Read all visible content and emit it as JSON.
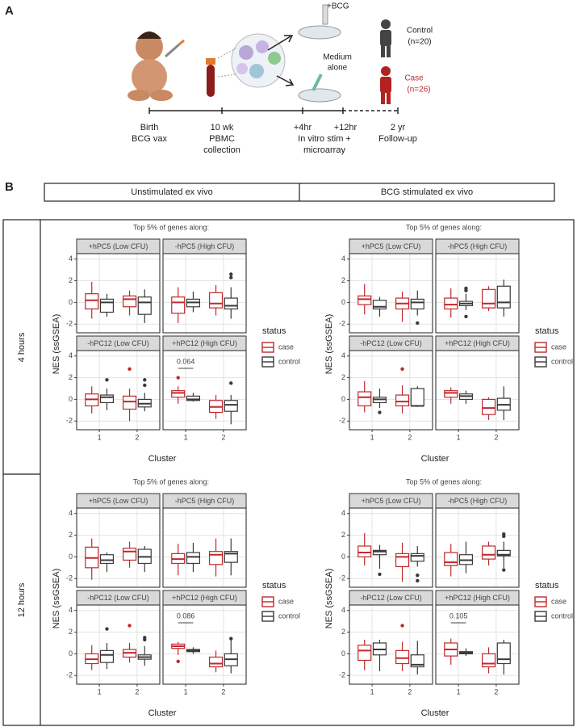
{
  "panel_a": {
    "letter": "A",
    "bcg": "+BCG",
    "medium": [
      "Medium",
      "alone"
    ],
    "control": [
      "Control",
      "(n=20)"
    ],
    "case": [
      "Case",
      "(n=26)"
    ],
    "timeline": [
      {
        "lines": [
          "Birth",
          "BCG vax"
        ]
      },
      {
        "lines": [
          "10 wk",
          "PBMC",
          "collection"
        ]
      },
      {
        "lines": [
          "+4hr"
        ]
      },
      {
        "lines": [
          "+12hr"
        ]
      },
      {
        "lines": [
          "In vitro stim +",
          "microarray"
        ]
      },
      {
        "lines": [
          "2 yr",
          "Follow-up"
        ]
      }
    ]
  },
  "panel_b": {
    "letter": "B",
    "columns": [
      "Unstimulated ex vivo",
      "BCG stimulated ex vivo"
    ],
    "rows": [
      "4 hours",
      "12 hours"
    ]
  },
  "chart_data": [
    {
      "type": "box",
      "title": "Top 5% of genes along:",
      "x_label": "Cluster",
      "y_label": "NES (ssGSEA)",
      "categories": [
        "1",
        "2"
      ],
      "ylim": [
        -2.8,
        4.5
      ],
      "yticks": [
        -2,
        0,
        2,
        4
      ],
      "grid": true,
      "legend_title": "status",
      "series": [
        {
          "name": "case",
          "color": "#c0282d"
        },
        {
          "name": "control",
          "color": "#3a3a3a"
        }
      ],
      "facets": [
        {
          "label": "+hPC5 (Low CFU)",
          "data": [
            [
              [
                -1.5,
                -0.6,
                0.2,
                0.8,
                1.9
              ],
              [
                -1.2,
                -0.4,
                0.3,
                0.6,
                1.1
              ]
            ],
            [
              [
                -1.3,
                -0.9,
                0,
                0.3,
                0.8
              ],
              [
                -1.9,
                -1.1,
                0,
                0.5,
                1.2
              ]
            ]
          ],
          "outliers": [
            [
              [],
              []
            ],
            [
              [],
              []
            ]
          ]
        },
        {
          "label": "-hPC5 (High CFU)",
          "data": [
            [
              [
                -1.9,
                -1,
                0,
                0.5,
                1.4
              ],
              [
                -1.2,
                -0.5,
                -0.1,
                0.9,
                1.6
              ]
            ],
            [
              [
                -0.9,
                -0.4,
                0,
                0.3,
                1.0
              ],
              [
                -1.5,
                -0.6,
                -0.3,
                0.4,
                1.4
              ]
            ]
          ],
          "outliers": [
            [
              [],
              []
            ],
            [
              [],
              [
                2.3,
                2.6
              ]
            ]
          ]
        },
        {
          "label": "-hPC12 (Low CFU)",
          "data": [
            [
              [
                -1.3,
                -0.6,
                0,
                0.5,
                1.2
              ],
              [
                -2,
                -0.9,
                -0.2,
                0.3,
                1
              ]
            ],
            [
              [
                -1.0,
                -0.3,
                0.2,
                0.4,
                1.0
              ],
              [
                -1.1,
                -0.7,
                -0.4,
                0,
                0.6
              ]
            ]
          ],
          "outliers": [
            [
              [],
              [
                2.8
              ]
            ],
            [
              [
                1.8
              ],
              [
                1.3,
                1.8
              ]
            ]
          ]
        },
        {
          "label": "+hPC12 (High CFU)",
          "annotation": 0.064,
          "data": [
            [
              [
                -0.4,
                0.2,
                0.6,
                0.8,
                1.2
              ],
              [
                -1.8,
                -1.2,
                -0.7,
                -0.1,
                0.4
              ]
            ],
            [
              [
                -0.2,
                -0.1,
                0,
                0.3,
                0.6
              ],
              [
                -2.3,
                -1.1,
                -0.5,
                -0.1,
                0.4
              ]
            ]
          ],
          "outliers": [
            [
              [
                2.0
              ],
              []
            ],
            [
              [],
              [
                1.5
              ]
            ]
          ]
        }
      ]
    },
    {
      "type": "box",
      "title": "Top 5% of genes along:",
      "x_label": "Cluster",
      "y_label": "NES (ssGSEA)",
      "categories": [
        "1",
        "2"
      ],
      "ylim": [
        -2.8,
        4.5
      ],
      "yticks": [
        -2,
        0,
        2,
        4
      ],
      "grid": true,
      "legend_title": "status",
      "series": [
        {
          "name": "case",
          "color": "#c0282d"
        },
        {
          "name": "control",
          "color": "#3a3a3a"
        }
      ],
      "facets": [
        {
          "label": "+hPC5 (Low CFU)",
          "data": [
            [
              [
                -1.1,
                -0.2,
                0.3,
                0.6,
                1.7
              ],
              [
                -1.8,
                -0.6,
                -0.1,
                0.4,
                1.0
              ]
            ],
            [
              [
                -1.3,
                -0.6,
                -0.4,
                0.2,
                0.5
              ],
              [
                -1.2,
                -0.6,
                0,
                0.3,
                1.1
              ]
            ]
          ],
          "outliers": [
            [
              [],
              []
            ],
            [
              [],
              [
                -1.9
              ]
            ]
          ]
        },
        {
          "label": "-hPC5 (High CFU)",
          "data": [
            [
              [
                -1.4,
                -0.6,
                -0.2,
                0.4,
                1.3
              ],
              [
                -0.8,
                -0.5,
                -0.1,
                1.2,
                1.5
              ]
            ],
            [
              [
                -0.7,
                -0.3,
                -0.1,
                0.1,
                0.8
              ],
              [
                -1.3,
                -0.5,
                0,
                1.5,
                2.1
              ]
            ]
          ],
          "outliers": [
            [
              [],
              []
            ],
            [
              [
                -1.3,
                1.1,
                1.3
              ],
              []
            ]
          ]
        },
        {
          "label": "-hPC12 (Low CFU)",
          "data": [
            [
              [
                -1.2,
                -0.6,
                0.2,
                0.7,
                1.7
              ],
              [
                -1.3,
                -0.6,
                -0.2,
                0.4,
                1.3
              ]
            ],
            [
              [
                -0.8,
                -0.3,
                0,
                0.2,
                1.0
              ],
              [
                -0.7,
                -0.6,
                -0.6,
                1.0,
                1.2
              ]
            ]
          ],
          "outliers": [
            [
              [],
              [
                2.8
              ]
            ],
            [
              [
                -1.2
              ],
              []
            ]
          ]
        },
        {
          "label": "+hPC12 (High CFU)",
          "data": [
            [
              [
                -0.4,
                0.2,
                0.6,
                0.8,
                1.1
              ],
              [
                -1.9,
                -1.4,
                -0.8,
                0,
                0.2
              ]
            ],
            [
              [
                -0.4,
                0,
                0.3,
                0.5,
                0.8
              ],
              [
                -1.9,
                -1.0,
                -0.5,
                0.1,
                1.2
              ]
            ]
          ],
          "outliers": [
            [
              [],
              []
            ],
            [
              [],
              []
            ]
          ]
        }
      ]
    },
    {
      "type": "box",
      "title": "Top 5% of genes along:",
      "x_label": "Cluster",
      "y_label": "NES (ssGSEA)",
      "categories": [
        "1",
        "2"
      ],
      "ylim": [
        -2.8,
        4.5
      ],
      "yticks": [
        -2,
        0,
        2,
        4
      ],
      "grid": true,
      "legend_title": "status",
      "series": [
        {
          "name": "case",
          "color": "#c0282d"
        },
        {
          "name": "control",
          "color": "#3a3a3a"
        }
      ],
      "facets": [
        {
          "label": "+hPC5 (Low CFU)",
          "data": [
            [
              [
                -2.1,
                -1,
                -0.1,
                0.9,
                1.7
              ],
              [
                -1,
                -0.3,
                0.5,
                0.8,
                1.4
              ]
            ],
            [
              [
                -1.4,
                -0.6,
                -0.3,
                0.2,
                0.4
              ],
              [
                -1.4,
                -0.6,
                0,
                0.7,
                1.0
              ]
            ]
          ],
          "outliers": [
            [
              [],
              []
            ],
            [
              [],
              []
            ]
          ]
        },
        {
          "label": "-hPC5 (High CFU)",
          "data": [
            [
              [
                -1.7,
                -0.6,
                -0.2,
                0.3,
                1.2
              ],
              [
                -1.8,
                -0.7,
                0.2,
                0.5,
                1.7
              ]
            ],
            [
              [
                -1.4,
                -0.6,
                0,
                0.4,
                1.3
              ],
              [
                -1.7,
                -0.5,
                0.3,
                0.5,
                1.7
              ]
            ]
          ],
          "outliers": [
            [
              [],
              []
            ],
            [
              [],
              []
            ]
          ]
        },
        {
          "label": "-hPC12 (Low CFU)",
          "data": [
            [
              [
                -1.5,
                -0.9,
                -0.5,
                0,
                0.8
              ],
              [
                -0.8,
                -0.3,
                0.1,
                0.4,
                1.0
              ]
            ],
            [
              [
                -1.4,
                -0.8,
                -0.1,
                0.3,
                1.0
              ],
              [
                -1.1,
                -0.5,
                -0.3,
                -0.1,
                0.7
              ]
            ]
          ],
          "outliers": [
            [
              [],
              [
                2.6
              ]
            ],
            [
              [
                2.3
              ],
              [
                1.3,
                1.5
              ]
            ]
          ]
        },
        {
          "label": "+hPC12 (High CFU)",
          "annotation": 0.086,
          "data": [
            [
              [
                -0.1,
                0.5,
                0.7,
                0.9,
                1.1
              ],
              [
                -1.7,
                -1.2,
                -0.9,
                -0.3,
                0.3
              ]
            ],
            [
              [
                0,
                0.2,
                0.3,
                0.4,
                0.6
              ],
              [
                -1.8,
                -1.1,
                -0.5,
                0,
                1.3
              ]
            ]
          ],
          "outliers": [
            [
              [
                -0.7
              ],
              []
            ],
            [
              [],
              [
                1.4
              ]
            ]
          ]
        }
      ]
    },
    {
      "type": "box",
      "title": "Top 5% of genes along:",
      "x_label": "Cluster",
      "y_label": "NES (ssGSEA)",
      "categories": [
        "1",
        "2"
      ],
      "ylim": [
        -2.8,
        4.5
      ],
      "yticks": [
        -2,
        0,
        2,
        4
      ],
      "grid": true,
      "legend_title": "status",
      "series": [
        {
          "name": "case",
          "color": "#c0282d"
        },
        {
          "name": "control",
          "color": "#3a3a3a"
        }
      ],
      "facets": [
        {
          "label": "+hPC5 (Low CFU)",
          "data": [
            [
              [
                -0.8,
                0,
                0.4,
                1.0,
                2.2
              ],
              [
                -2.3,
                -0.9,
                0,
                0.3,
                1.3
              ]
            ],
            [
              [
                -1.1,
                0.2,
                0.5,
                0.6,
                1.1
              ],
              [
                -0.9,
                -0.4,
                0.1,
                0.3,
                1.0
              ]
            ]
          ],
          "outliers": [
            [
              [],
              []
            ],
            [
              [
                -1.6
              ],
              [
                -1.7,
                -2.2
              ]
            ]
          ]
        },
        {
          "label": "-hPC5 (High CFU)",
          "data": [
            [
              [
                -1.8,
                -0.8,
                -0.5,
                0.4,
                1.2
              ],
              [
                -0.8,
                -0.2,
                0.2,
                1.0,
                1.4
              ]
            ],
            [
              [
                -1.5,
                -0.7,
                -0.3,
                0.2,
                1.4
              ],
              [
                -1,
                0.1,
                0.2,
                0.6,
                1.4
              ]
            ]
          ],
          "outliers": [
            [
              [],
              []
            ],
            [
              [],
              [
                -1.2,
                1.9,
                2.1
              ]
            ]
          ]
        },
        {
          "label": "-hPC12 (Low CFU)",
          "data": [
            [
              [
                -1.5,
                -0.6,
                0.3,
                0.8,
                1.3
              ],
              [
                -1.6,
                -0.9,
                -0.4,
                0.3,
                1.1
              ]
            ],
            [
              [
                -1.6,
                -0.1,
                0.4,
                1.0,
                1.3
              ],
              [
                -1.9,
                -1.2,
                -1.0,
                -0.1,
                1.2
              ]
            ]
          ],
          "outliers": [
            [
              [],
              [
                2.6
              ]
            ],
            [
              [],
              []
            ]
          ]
        },
        {
          "label": "+hPC12 (High CFU)",
          "annotation": 0.105,
          "data": [
            [
              [
                -1.0,
                -0.2,
                0.4,
                1.0,
                1.4
              ],
              [
                -1.8,
                -1.2,
                -0.9,
                0,
                0.6
              ]
            ],
            [
              [
                -0.2,
                0,
                0.1,
                0.2,
                0.5
              ],
              [
                -1.9,
                -0.9,
                -0.5,
                1.0,
                1.3
              ]
            ]
          ],
          "outliers": [
            [
              [],
              []
            ],
            [
              [],
              []
            ]
          ]
        }
      ]
    }
  ]
}
